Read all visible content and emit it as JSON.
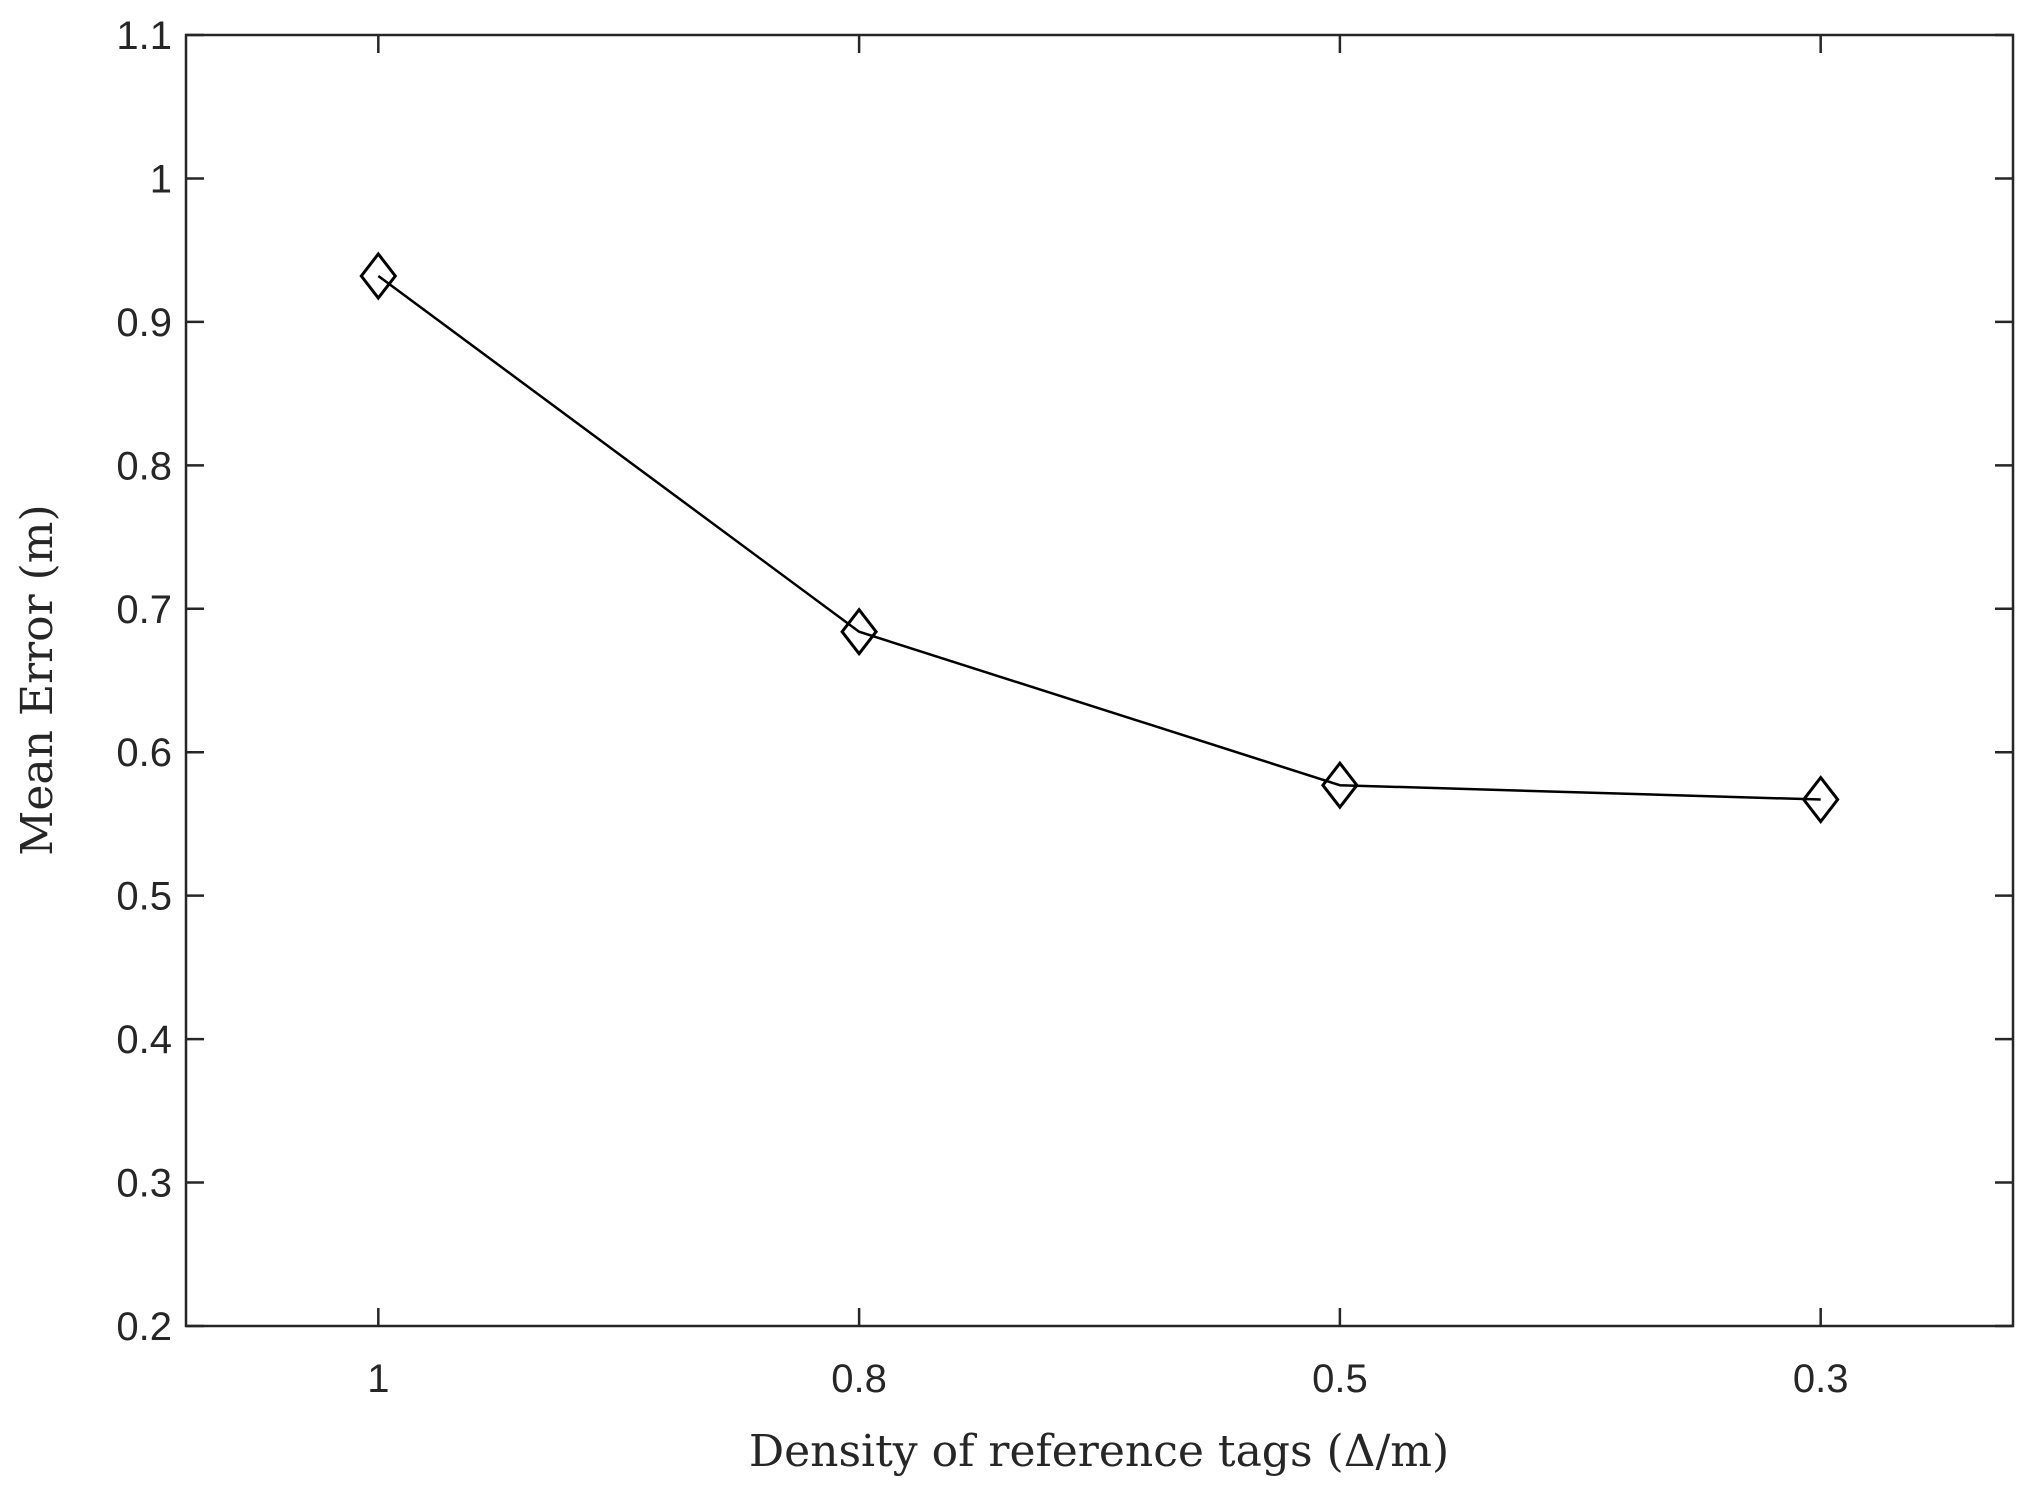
{
  "chart_data": {
    "type": "line",
    "title": "",
    "xlabel": "Density of reference tags (Δ/m)",
    "ylabel": "Mean Error (m)",
    "categories": [
      "1",
      "0.8",
      "0.5",
      "0.3"
    ],
    "ylim": [
      0.2,
      1.1
    ],
    "yticks": [
      "0.2",
      "0.3",
      "0.4",
      "0.5",
      "0.6",
      "0.7",
      "0.8",
      "0.9",
      "1",
      "1.1"
    ],
    "grid": false,
    "marker": "diamond",
    "line_color": "#000000",
    "series": [
      {
        "values": [
          0.932,
          0.684,
          0.577,
          0.567
        ]
      }
    ]
  }
}
